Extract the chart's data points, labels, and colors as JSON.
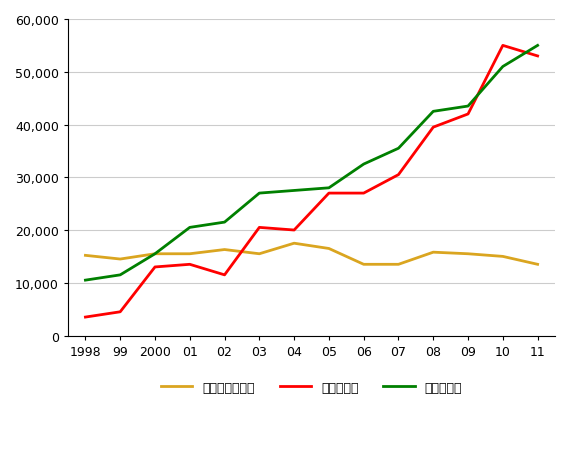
{
  "years": [
    1998,
    1999,
    2000,
    2001,
    2002,
    2003,
    2004,
    2005,
    2006,
    2007,
    2008,
    2009,
    2010,
    2011
  ],
  "domestic": [
    15200,
    14500,
    15500,
    15500,
    16300,
    15500,
    17500,
    16500,
    13500,
    13500,
    15800,
    15500,
    15000,
    13500
  ],
  "import": [
    3500,
    4500,
    13000,
    13500,
    11500,
    20500,
    20000,
    27000,
    27000,
    30500,
    39500,
    42000,
    55000,
    53000
  ],
  "crushing": [
    10500,
    11500,
    15500,
    20500,
    21500,
    27000,
    27500,
    28000,
    32500,
    35500,
    42500,
    43500,
    51000,
    55000
  ],
  "domestic_color": "#DAA520",
  "import_color": "#FF0000",
  "crushing_color": "#008000",
  "domestic_label": "国内大豆生産量",
  "import_label": "大豆輸入量",
  "crushing_label": "大豆櫟油量",
  "ylim": [
    0,
    60000
  ],
  "yticks": [
    0,
    10000,
    20000,
    30000,
    40000,
    50000,
    60000
  ],
  "background_color": "#FFFFFF",
  "grid_color": "#CCCCCC"
}
